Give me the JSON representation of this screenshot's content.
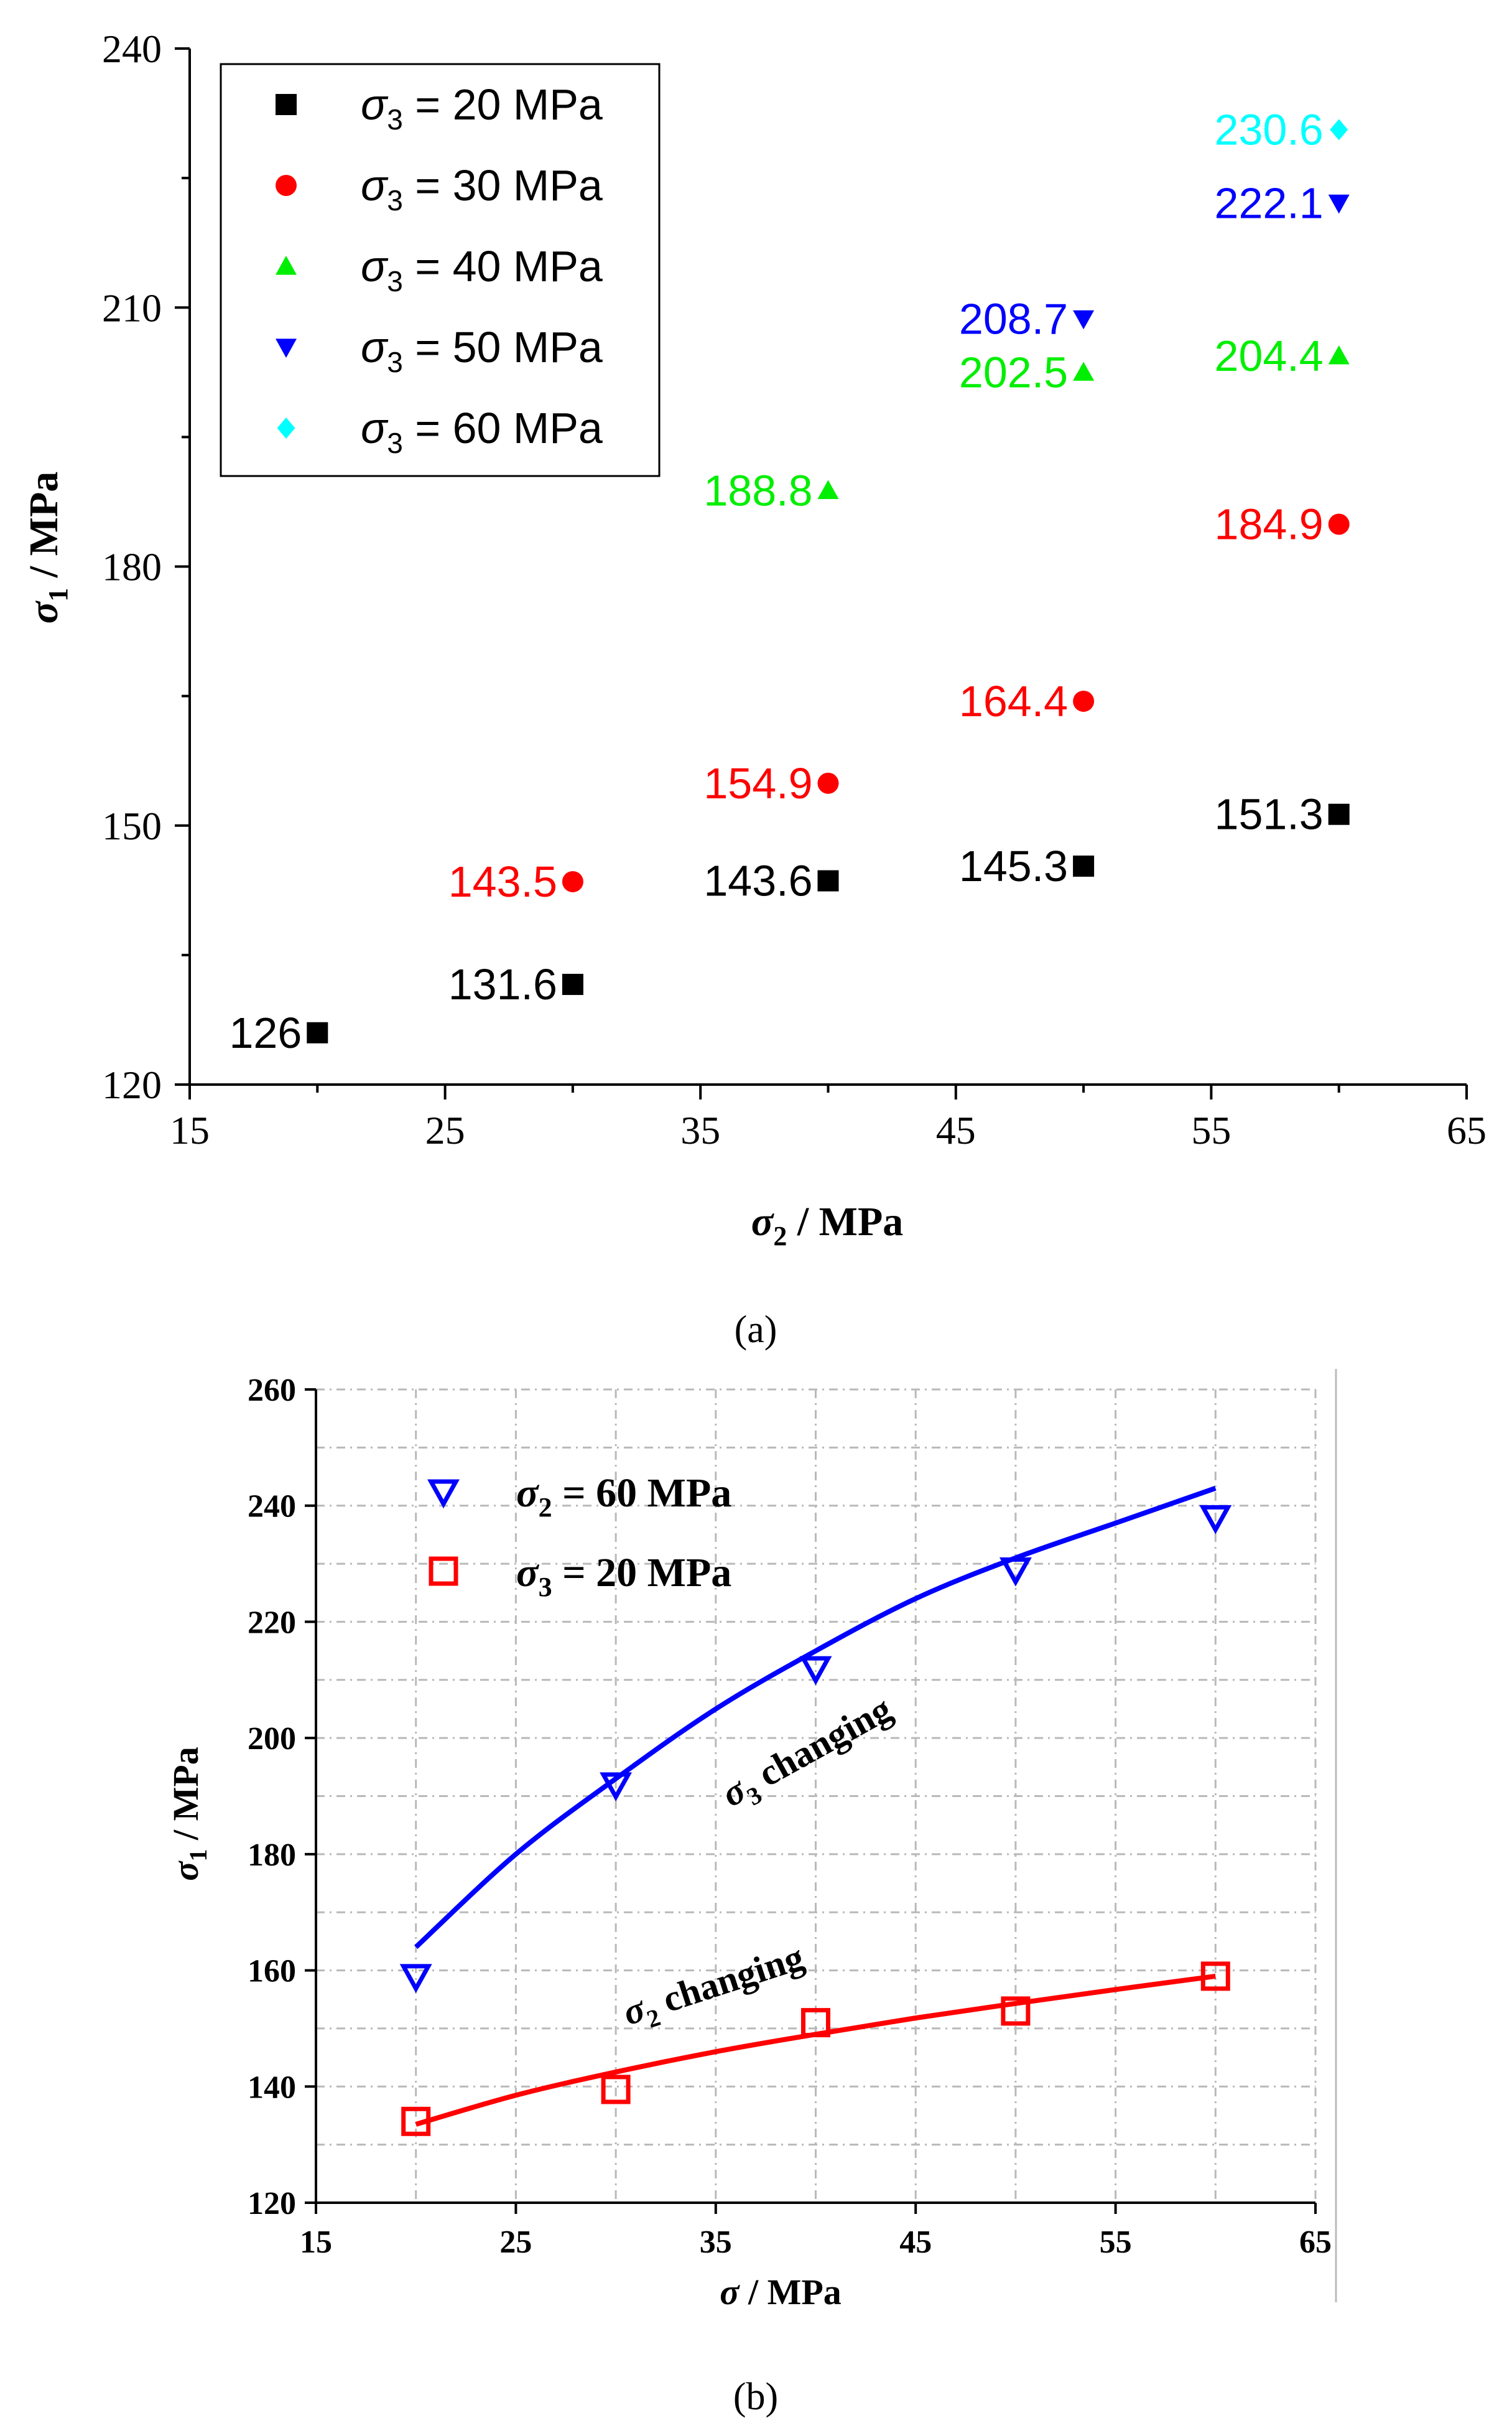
{
  "chart_data": [
    {
      "id": "a",
      "type": "scatter",
      "panel_label": "(a)",
      "xlabel_symbol": "σ",
      "xlabel_sub": "2",
      "xlabel_unit": " / MPa",
      "ylabel_symbol": "σ",
      "ylabel_sub": "1",
      "ylabel_unit": " / MPa",
      "xlim": [
        15,
        65
      ],
      "ylim": [
        120,
        240
      ],
      "xticks": [
        15,
        25,
        35,
        45,
        55,
        65
      ],
      "yticks": [
        120,
        150,
        180,
        210,
        240
      ],
      "grid": false,
      "legend_position": "top-left",
      "series": [
        {
          "name": "σ3 = 20 MPa",
          "legend_symbol": "σ",
          "legend_sub": "3",
          "legend_rest": " = 20 MPa",
          "marker": "square",
          "color": "#000000",
          "x": [
            20,
            30,
            40,
            50,
            60
          ],
          "y": [
            126,
            131.6,
            143.6,
            145.3,
            151.3
          ],
          "labels": [
            "126",
            "131.6",
            "143.6",
            "145.3",
            "151.3"
          ]
        },
        {
          "name": "σ3 = 30 MPa",
          "legend_symbol": "σ",
          "legend_sub": "3",
          "legend_rest": " = 30 MPa",
          "marker": "circle",
          "color": "#ff0000",
          "x": [
            30,
            40,
            50,
            60
          ],
          "y": [
            143.5,
            154.9,
            164.4,
            184.9
          ],
          "labels": [
            "143.5",
            "154.9",
            "164.4",
            "184.9"
          ]
        },
        {
          "name": "σ3 = 40 MPa",
          "legend_symbol": "σ",
          "legend_sub": "3",
          "legend_rest": " = 40 MPa",
          "marker": "triangle-up",
          "color": "#00ee00",
          "x": [
            40,
            50,
            60
          ],
          "y": [
            188.8,
            202.5,
            204.4
          ],
          "labels": [
            "188.8",
            "202.5",
            "204.4"
          ]
        },
        {
          "name": "σ3 = 50 MPa",
          "legend_symbol": "σ",
          "legend_sub": "3",
          "legend_rest": " = 50 MPa",
          "marker": "triangle-down",
          "color": "#0000ff",
          "x": [
            50,
            60
          ],
          "y": [
            208.7,
            222.1
          ],
          "labels": [
            "208.7",
            "222.1"
          ]
        },
        {
          "name": "σ3 = 60 MPa",
          "legend_symbol": "σ",
          "legend_sub": "3",
          "legend_rest": " = 60 MPa",
          "marker": "diamond",
          "color": "#00ffff",
          "x": [
            60
          ],
          "y": [
            230.6
          ],
          "labels": [
            "230.6"
          ]
        }
      ]
    },
    {
      "id": "b",
      "type": "scatter",
      "panel_label": "(b)",
      "xlabel_symbol": "σ",
      "xlabel_unit": " / MPa",
      "ylabel_symbol": "σ",
      "ylabel_sub": "1",
      "ylabel_unit": " / MPa",
      "xlim": [
        15,
        65
      ],
      "ylim": [
        120,
        260
      ],
      "xticks": [
        15,
        25,
        35,
        45,
        55,
        65
      ],
      "yticks": [
        120,
        140,
        160,
        180,
        200,
        220,
        240,
        260
      ],
      "grid": true,
      "legend_position": "top-left",
      "series": [
        {
          "name": "σ2 = 60 MPa",
          "legend_symbol": "σ",
          "legend_sub": "2",
          "legend_rest": " = 60 MPa",
          "marker": "triangle-down-open",
          "color": "#0000ff",
          "x": [
            20,
            30,
            40,
            50,
            60
          ],
          "y": [
            159,
            192,
            212,
            229,
            238
          ],
          "fit": {
            "x": [
              20,
              25,
              30,
              35,
              40,
              45,
              50,
              55,
              60
            ],
            "y": [
              164,
              180,
              193,
              205,
              215,
              224,
              231,
              237,
              243
            ]
          },
          "annotation_symbol": "σ",
          "annotation_sub": "3",
          "annotation_rest": " changing"
        },
        {
          "name": "σ3 = 20 MPa",
          "legend_symbol": "σ",
          "legend_sub": "3",
          "legend_rest": " = 20 MPa",
          "marker": "square-open",
          "color": "#ff0000",
          "x": [
            20,
            30,
            40,
            50,
            60
          ],
          "y": [
            134,
            139.5,
            151,
            153,
            159
          ],
          "fit": {
            "x": [
              20,
              25,
              30,
              35,
              40,
              45,
              50,
              55,
              60
            ],
            "y": [
              133.5,
              138.5,
              142.5,
              146,
              149,
              151.8,
              154.3,
              156.7,
              159
            ]
          },
          "annotation_symbol": "σ",
          "annotation_sub": "2",
          "annotation_rest": " changing"
        }
      ]
    }
  ]
}
